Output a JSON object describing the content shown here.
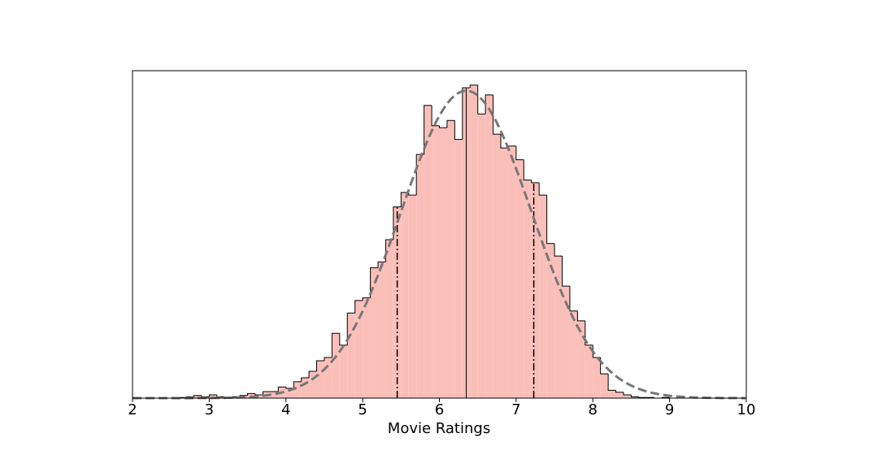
{
  "chart_data": {
    "type": "histogram",
    "xlabel": "Movie Ratings",
    "bins": [
      2.6,
      2.7,
      2.8,
      2.9,
      3.0,
      3.1,
      3.2,
      3.3,
      3.4,
      3.5,
      3.6,
      3.7,
      3.8,
      3.9,
      4.0,
      4.1,
      4.2,
      4.3,
      4.4,
      4.5,
      4.6,
      4.7,
      4.8,
      4.9,
      5.0,
      5.1,
      5.2,
      5.3,
      5.4,
      5.5,
      5.6,
      5.7,
      5.8,
      5.9,
      6.0,
      6.1,
      6.2,
      6.3,
      6.4,
      6.5,
      6.6,
      6.7,
      6.8,
      6.9,
      7.0,
      7.1,
      7.2,
      7.3,
      7.4,
      7.5,
      7.6,
      7.7,
      7.8,
      7.9,
      8.0,
      8.1,
      8.2,
      8.3,
      8.4,
      8.5,
      8.6,
      8.7,
      8.8,
      8.9,
      9.0
    ],
    "values": [
      0.001,
      0.002,
      0.004,
      0.002,
      0.005,
      0.002,
      0.001,
      0.002,
      0.004,
      0.007,
      0.005,
      0.01,
      0.01,
      0.017,
      0.015,
      0.025,
      0.031,
      0.041,
      0.057,
      0.062,
      0.099,
      0.081,
      0.13,
      0.149,
      0.153,
      0.199,
      0.208,
      0.242,
      0.292,
      0.314,
      0.31,
      0.372,
      0.447,
      0.416,
      0.413,
      0.424,
      0.395,
      0.474,
      0.478,
      0.434,
      0.463,
      0.403,
      0.382,
      0.385,
      0.364,
      0.333,
      0.329,
      0.31,
      0.236,
      0.217,
      0.171,
      0.133,
      0.118,
      0.081,
      0.062,
      0.037,
      0.012,
      0.009,
      0.005,
      0.002,
      0.001,
      0.001,
      0,
      0.001
    ],
    "color": "#fbbfb9",
    "edgecolor": "#000000",
    "fit": {
      "mean": 6.35,
      "sd": 0.85,
      "color": "#777777"
    },
    "lines": [
      {
        "x": 5.45,
        "style": "dashdot"
      },
      {
        "x": 6.35,
        "style": "solid"
      },
      {
        "x": 7.23,
        "style": "dashdot"
      }
    ],
    "xlim": [
      2,
      10
    ],
    "ylim": [
      0,
      0.5
    ],
    "xticks": [
      2,
      3,
      4,
      5,
      6,
      7,
      8,
      9,
      10
    ]
  }
}
